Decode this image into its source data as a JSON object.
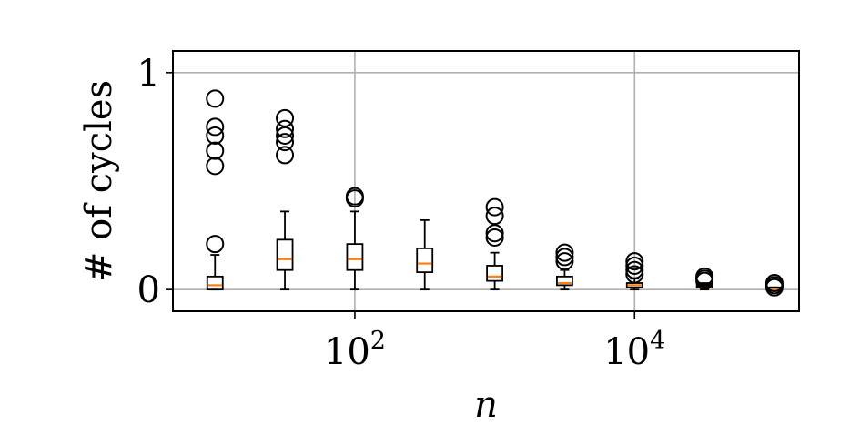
{
  "chart_data": {
    "type": "box",
    "title": "",
    "xlabel": "n",
    "ylabel": "# of cycles",
    "x_scale": "log",
    "xlim": [
      5,
      150000
    ],
    "ylim": [
      -0.1,
      1.1
    ],
    "grid": true,
    "x_ticks": [
      {
        "base": "10",
        "exp": "2",
        "value": 100
      },
      {
        "base": "10",
        "exp": "4",
        "value": 10000
      }
    ],
    "y_ticks": [
      {
        "label": "0",
        "value": 0
      },
      {
        "label": "1",
        "value": 1
      }
    ],
    "boxes": [
      {
        "n": 10,
        "whislo": 0.0,
        "q1": 0.0,
        "med": 0.02,
        "q3": 0.06,
        "whishi": 0.16,
        "fliers": [
          0.21,
          0.57,
          0.64,
          0.71,
          0.75,
          0.88
        ]
      },
      {
        "n": 31.6,
        "whislo": 0.0,
        "q1": 0.09,
        "med": 0.14,
        "q3": 0.23,
        "whishi": 0.36,
        "fliers": [
          0.62,
          0.68,
          0.71,
          0.74,
          0.79
        ]
      },
      {
        "n": 100,
        "whislo": 0.0,
        "q1": 0.09,
        "med": 0.14,
        "q3": 0.21,
        "whishi": 0.36,
        "fliers": [
          0.42,
          0.43
        ]
      },
      {
        "n": 316,
        "whislo": 0.0,
        "q1": 0.08,
        "med": 0.12,
        "q3": 0.19,
        "whishi": 0.32,
        "fliers": []
      },
      {
        "n": 1000,
        "whislo": 0.0,
        "q1": 0.04,
        "med": 0.06,
        "q3": 0.11,
        "whishi": 0.17,
        "fliers": [
          0.24,
          0.26,
          0.34,
          0.38
        ]
      },
      {
        "n": 3162,
        "whislo": 0.0,
        "q1": 0.02,
        "med": 0.03,
        "q3": 0.06,
        "whishi": 0.09,
        "fliers": [
          0.13,
          0.15,
          0.17
        ]
      },
      {
        "n": 10000,
        "whislo": 0.0,
        "q1": 0.01,
        "med": 0.02,
        "q3": 0.03,
        "whishi": 0.05,
        "fliers": [
          0.07,
          0.09,
          0.11,
          0.13
        ]
      },
      {
        "n": 31623,
        "whislo": 0.0,
        "q1": 0.01,
        "med": 0.01,
        "q3": 0.02,
        "whishi": 0.03,
        "fliers": [
          0.04,
          0.05,
          0.06
        ]
      },
      {
        "n": 100000,
        "whislo": 0.0,
        "q1": 0.0,
        "med": 0.0,
        "q3": 0.01,
        "whishi": 0.01,
        "fliers": [
          0.01,
          0.02,
          0.03
        ]
      }
    ],
    "colors": {
      "box": "#000000",
      "median": "#ff7f0e",
      "grid": "#b0b0b0",
      "flier": "#000000"
    }
  }
}
